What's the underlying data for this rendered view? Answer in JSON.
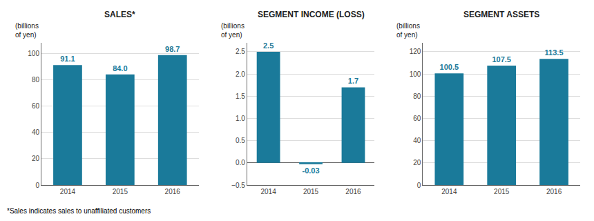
{
  "chart_data": [
    {
      "type": "bar",
      "title": "SALES*",
      "ylabel": "(billions\nof yen)",
      "categories": [
        "2014",
        "2015",
        "2016"
      ],
      "values": [
        91.1,
        84.0,
        98.7
      ],
      "value_labels": [
        "91.1",
        "84.0",
        "98.7"
      ],
      "color": "#1a7a9a",
      "ylim": [
        0,
        108
      ],
      "yticks": [
        0,
        20,
        40,
        60,
        80,
        100
      ],
      "grid": true,
      "data_labels": true,
      "annotation": "*Sales indicates sales to unaffiliated customers"
    },
    {
      "type": "bar",
      "title": "SEGMENT INCOME (LOSS)",
      "ylabel": "(billions\nof yen)",
      "categories": [
        "2014",
        "2015",
        "2016"
      ],
      "values": [
        2.5,
        -0.03,
        1.7
      ],
      "color": "#1a7a9a",
      "ylim": [
        -0.5,
        2.7
      ],
      "yticks": [
        {
          "value": -0.5,
          "label": "−0.5"
        },
        {
          "value": 0,
          "label": "0.0"
        },
        0.5,
        {
          "value": 1,
          "label": "1.0"
        },
        1.5,
        {
          "value": 2,
          "label": "2.0"
        },
        2.5
      ],
      "grid": true,
      "data_labels": true
    },
    {
      "type": "bar",
      "title": "SEGMENT ASSETS",
      "ylabel": "(billions\nof yen)",
      "categories": [
        "2014",
        "2015",
        "2016"
      ],
      "values": [
        100.5,
        107.5,
        113.5
      ],
      "color": "#1a7a9a",
      "ylim": [
        0,
        128
      ],
      "yticks": [
        0,
        20,
        40,
        60,
        80,
        100,
        120
      ],
      "grid": true,
      "data_labels": true
    }
  ]
}
